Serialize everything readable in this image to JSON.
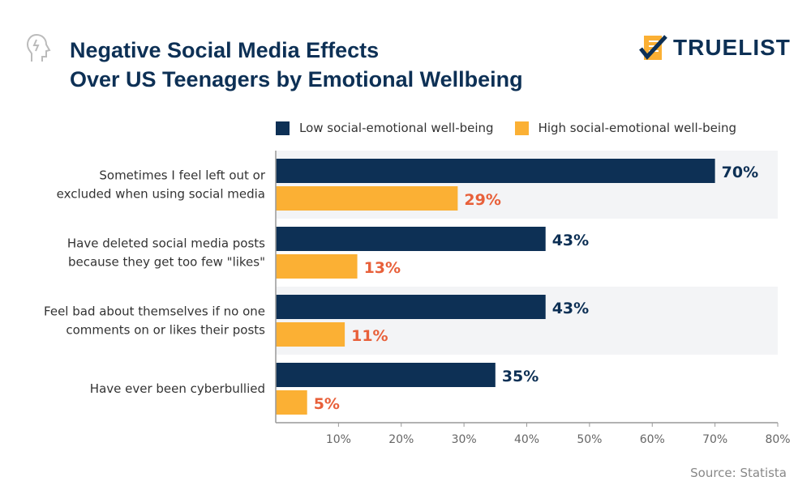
{
  "header": {
    "title_line1": "Negative Social Media Effects",
    "title_line2": "Over US Teenagers by Emotional Wellbeing",
    "logo_text": "TRUELIST",
    "head_icon": "head-brain-icon",
    "logo_icon": "checklist-icon"
  },
  "source": "Source: Statista",
  "colors": {
    "low": "#0d3055",
    "high": "#fbb034",
    "high_label": "#e8603a",
    "band": "#f3f4f6"
  },
  "chart_data": {
    "type": "bar",
    "orientation": "horizontal",
    "categories": [
      [
        "Sometimes I feel left out or",
        "excluded when using social media"
      ],
      [
        "Have deleted social media posts",
        "because they get too few \"likes\""
      ],
      [
        "Feel bad about themselves if no one",
        "comments on or likes their posts"
      ],
      [
        "Have ever been cyberbullied"
      ]
    ],
    "series": [
      {
        "name": "Low social-emotional well-being",
        "values": [
          70,
          43,
          43,
          35
        ]
      },
      {
        "name": "High social-emotional well-being",
        "values": [
          29,
          13,
          11,
          5
        ]
      }
    ],
    "data_labels": [
      [
        "70%",
        "43%",
        "43%",
        "35%"
      ],
      [
        "29%",
        "13%",
        "11%",
        "5%"
      ]
    ],
    "xlim": [
      0,
      80
    ],
    "xticks": [
      10,
      20,
      30,
      40,
      50,
      60,
      70,
      80
    ],
    "xtick_labels": [
      "10%",
      "20%",
      "30%",
      "40%",
      "50%",
      "60%",
      "70%",
      "80%"
    ],
    "legend": "top-right",
    "grid": false
  }
}
